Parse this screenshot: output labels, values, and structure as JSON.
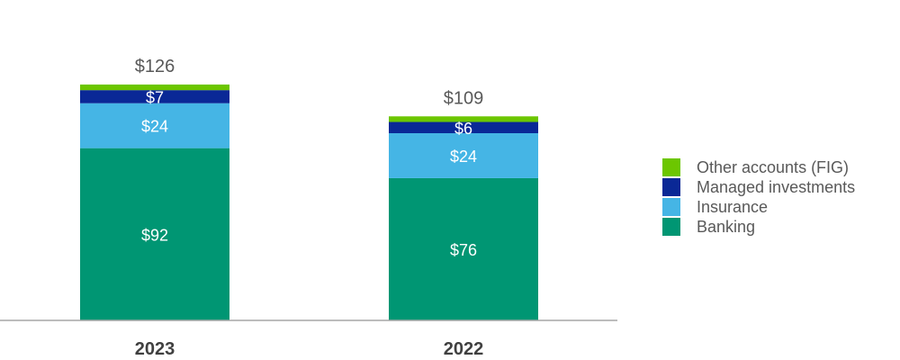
{
  "chart_data": {
    "type": "bar",
    "stacked": true,
    "categories": [
      "2023",
      "2022"
    ],
    "series": [
      {
        "name": "Banking",
        "values": [
          92,
          76
        ],
        "labels": [
          "$92",
          "$76"
        ],
        "color": "#009673"
      },
      {
        "name": "Insurance",
        "values": [
          24,
          24
        ],
        "labels": [
          "$24",
          "$24"
        ],
        "color": "#45b5e5"
      },
      {
        "name": "Managed investments",
        "values": [
          7,
          6
        ],
        "labels": [
          "$7",
          "$6"
        ],
        "color": "#0a2896"
      },
      {
        "name": "Other accounts (FIG)",
        "values": [
          3,
          3
        ],
        "labels": [
          "",
          ""
        ],
        "color": "#6cc600"
      }
    ],
    "totals": [
      "$126",
      "$109"
    ],
    "legend_order": [
      "Other accounts (FIG)",
      "Managed investments",
      "Insurance",
      "Banking"
    ],
    "legend_position": "right",
    "grid": false,
    "axis_color": "#a6a6a6",
    "total_label_color": "#595959",
    "category_label_color": "#404040",
    "segment_label_color": "#ffffff"
  }
}
